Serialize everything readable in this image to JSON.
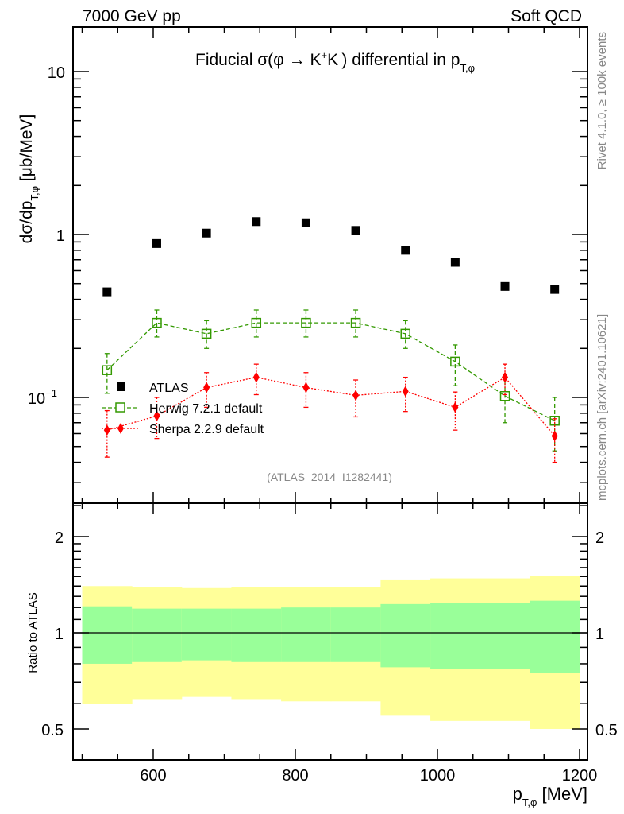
{
  "header": {
    "left": "7000 GeV pp",
    "right": "Soft QCD"
  },
  "side_labels": {
    "rivet": "Rivet 4.1.0, ≥ 100k events",
    "mcplots": "mcplots.cern.ch [arXiv:2401.10621]"
  },
  "analysis_id": "(ATLAS_2014_I1282441)",
  "colors": {
    "atlas": "#000000",
    "herwig": "#339900",
    "sherpa": "#ff0000",
    "band_inner": "#99ff99",
    "band_outer": "#ffff99"
  },
  "chart_data": [
    {
      "type": "scatter",
      "title": {
        "a": "Fiducial",
        "b": "σ(φ →  K",
        "sup1": "+",
        "c": "K",
        "sup2": "-",
        "d": ") differential in p",
        "sub": "T,φ"
      },
      "ylabel": {
        "main": "dσ/dp",
        "sub": "T,φ",
        "unit": " [μb/MeV]"
      },
      "xlabel": {
        "main": "p",
        "sub": "T,φ",
        "unit": " [MeV]"
      },
      "xlim": [
        487,
        1212
      ],
      "ylim": [
        0.0224,
        18.5
      ],
      "yscale": "log",
      "ytick_labels": [
        {
          "v": 10,
          "label": "10"
        },
        {
          "v": 1,
          "label": "1"
        },
        {
          "v": 0.1,
          "label": "10",
          "sup": "−1"
        }
      ],
      "x": [
        535,
        605,
        675,
        745,
        815,
        885,
        955,
        1025,
        1095,
        1165
      ],
      "legend_position": "center-left",
      "series": [
        {
          "name": "ATLAS",
          "key": "atlas",
          "marker": "filled-square",
          "values": [
            0.445,
            0.88,
            1.02,
            1.2,
            1.18,
            1.06,
            0.8,
            0.675,
            0.48,
            0.46
          ]
        },
        {
          "name": "Herwig 7.2.1 default",
          "key": "herwig",
          "marker": "open-square",
          "line": "dashed",
          "values": [
            0.147,
            0.287,
            0.246,
            0.287,
            0.287,
            0.287,
            0.246,
            0.166,
            0.102,
            0.072
          ],
          "err_up": [
            0.186,
            0.344,
            0.296,
            0.344,
            0.344,
            0.344,
            0.296,
            0.21,
            0.138,
            0.1
          ],
          "err_down": [
            0.106,
            0.235,
            0.2,
            0.235,
            0.235,
            0.235,
            0.2,
            0.118,
            0.07,
            0.047
          ]
        },
        {
          "name": "Sherpa 2.2.9 default",
          "key": "sherpa",
          "marker": "filled-diamond",
          "line": "dotted",
          "values": [
            0.063,
            0.077,
            0.115,
            0.133,
            0.115,
            0.103,
            0.109,
            0.087,
            0.133,
            0.058
          ],
          "err_up": [
            0.083,
            0.1,
            0.142,
            0.16,
            0.142,
            0.128,
            0.133,
            0.108,
            0.16,
            0.074
          ],
          "err_down": [
            0.043,
            0.056,
            0.087,
            0.104,
            0.087,
            0.076,
            0.082,
            0.063,
            0.104,
            0.04
          ]
        }
      ]
    },
    {
      "type": "area",
      "ylabel": "Ratio to ATLAS",
      "yscale": "log",
      "ylim": [
        0.397,
        2.54
      ],
      "ytick_labels": [
        {
          "v": 2,
          "label": "2"
        },
        {
          "v": 1,
          "label": "1"
        },
        {
          "v": 0.5,
          "label": "0.5"
        }
      ],
      "xtick_labels": [
        {
          "v": 600,
          "label": "600"
        },
        {
          "v": 800,
          "label": "800"
        },
        {
          "v": 1000,
          "label": "1000"
        },
        {
          "v": 1200,
          "label": "1200"
        }
      ],
      "bin_edges": [
        500,
        570,
        640,
        710,
        780,
        850,
        920,
        990,
        1060,
        1130,
        1200
      ],
      "outer_up": [
        1.4,
        1.39,
        1.38,
        1.39,
        1.39,
        1.39,
        1.46,
        1.48,
        1.48,
        1.51
      ],
      "inner_up": [
        1.21,
        1.19,
        1.19,
        1.19,
        1.2,
        1.2,
        1.23,
        1.24,
        1.24,
        1.26
      ],
      "inner_down": [
        0.8,
        0.81,
        0.82,
        0.81,
        0.81,
        0.81,
        0.78,
        0.77,
        0.77,
        0.75
      ],
      "outer_down": [
        0.6,
        0.62,
        0.63,
        0.62,
        0.61,
        0.61,
        0.55,
        0.53,
        0.53,
        0.5
      ],
      "reference": 1
    }
  ]
}
